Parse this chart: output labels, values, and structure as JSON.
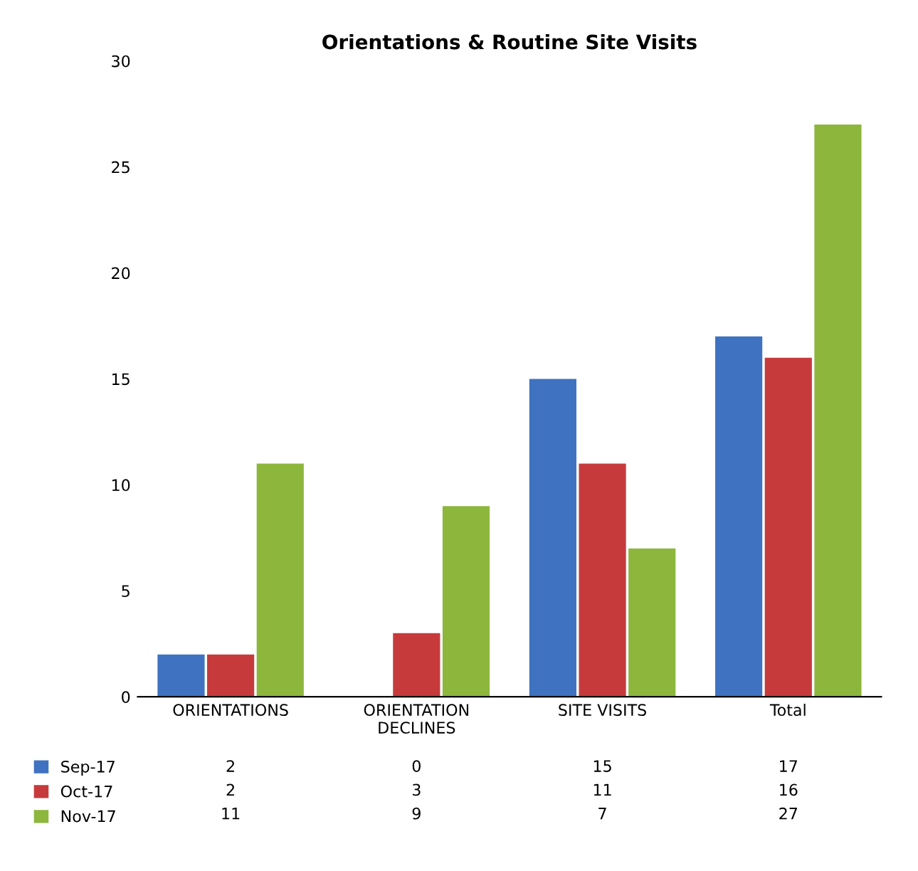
{
  "chart_data": {
    "type": "bar",
    "title": "Orientations & Routine Site Visits",
    "categories": [
      "ORIENTATIONS",
      "ORIENTATION\nDECLINES",
      "SITE VISITS",
      "Total"
    ],
    "series": [
      {
        "name": "Sep-17",
        "color": "#3f72c0",
        "values": [
          2,
          0,
          15,
          17
        ]
      },
      {
        "name": "Oct-17",
        "color": "#c63a3c",
        "values": [
          2,
          3,
          11,
          16
        ]
      },
      {
        "name": "Nov-17",
        "color": "#8db63d",
        "values": [
          11,
          9,
          7,
          27
        ]
      }
    ],
    "ylim": [
      0,
      30
    ],
    "yticks": [
      0,
      5,
      10,
      15,
      20,
      25,
      30
    ],
    "grid": false,
    "data_labels": true,
    "legend": "bottom left"
  }
}
